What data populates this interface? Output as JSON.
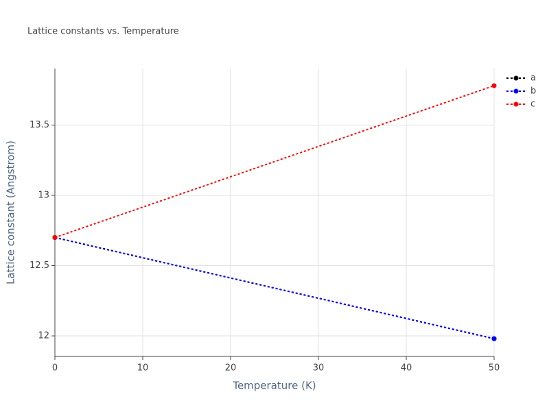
{
  "chart_data": {
    "type": "line",
    "title": "Lattice constants vs. Temperature",
    "x_label": "Temperature (K)",
    "y_label": "Lattice constant (Angstrom)",
    "x": [
      0,
      50
    ],
    "series": [
      {
        "name": "a",
        "color": "#000000",
        "values": [
          12.7,
          11.98
        ]
      },
      {
        "name": "b",
        "color": "#0000ff",
        "values": [
          12.7,
          11.98
        ]
      },
      {
        "name": "c",
        "color": "#ff0000",
        "values": [
          12.7,
          13.78
        ]
      }
    ],
    "xlim": [
      0,
      50
    ],
    "xticks": [
      0,
      10,
      20,
      30,
      40,
      50
    ],
    "ylim": [
      11.854,
      13.902
    ],
    "yticks": [
      12,
      12.5,
      13,
      13.5
    ],
    "grid": true,
    "legend": "right"
  }
}
